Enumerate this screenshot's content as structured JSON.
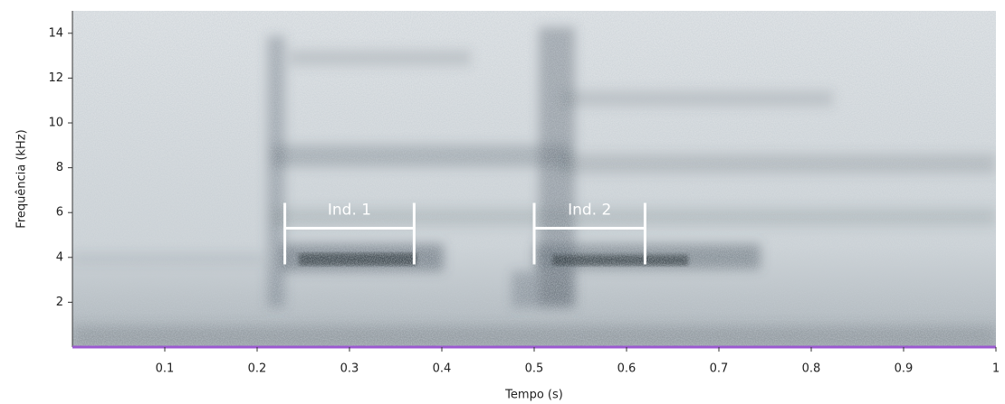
{
  "chart_data": {
    "type": "spectrogram",
    "xlabel": "Tempo (s)",
    "ylabel": "Frequência (kHz)",
    "xlim": [
      0,
      1
    ],
    "xticks": [
      0.1,
      0.2,
      0.3,
      0.4,
      0.5,
      0.6,
      0.7,
      0.8,
      0.9,
      1
    ],
    "ylim": [
      0,
      15
    ],
    "yticks": [
      2,
      4,
      6,
      8,
      10,
      12,
      14
    ],
    "axis_color": "#9b59d0",
    "annotations": [
      {
        "label": "Ind. 1",
        "start": 0.23,
        "end": 0.37,
        "freq": 5.3
      },
      {
        "label": "Ind. 2",
        "start": 0.5,
        "end": 0.62,
        "freq": 5.3
      }
    ]
  }
}
